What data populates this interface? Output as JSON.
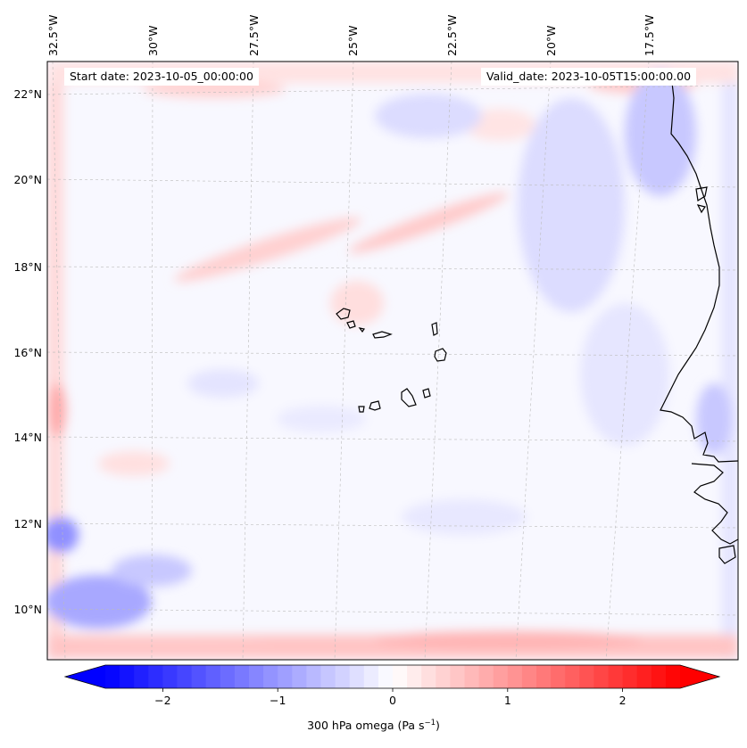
{
  "map": {
    "start_date_text": "Start date: 2023-10-05_00:00:00",
    "valid_date_text": "Valid_date: 2023-10-05T15:00:00.00",
    "lon_labels": [
      "32.5°W",
      "30°W",
      "27.5°W",
      "25°W",
      "22.5°W",
      "20°W",
      "17.5°W"
    ],
    "lat_labels": [
      "22°N",
      "20°N",
      "18°N",
      "16°N",
      "14°N",
      "12°N",
      "10°N"
    ],
    "gridlines": true,
    "colormap": "bwr",
    "colors": {
      "negative": "#0000ff",
      "neutral": "#ffffff",
      "positive": "#ff0000",
      "coastline": "#000000"
    }
  },
  "colorbar": {
    "label_text": "300 hPa omega (Pa s",
    "label_exponent": "−1",
    "label_close": ")",
    "tick_labels": [
      "−2",
      "−1",
      "0",
      "1",
      "2"
    ],
    "ticks": [
      -2,
      -1,
      0,
      1,
      2
    ],
    "range": [
      -2.5,
      2.5
    ],
    "extend": "both"
  }
}
